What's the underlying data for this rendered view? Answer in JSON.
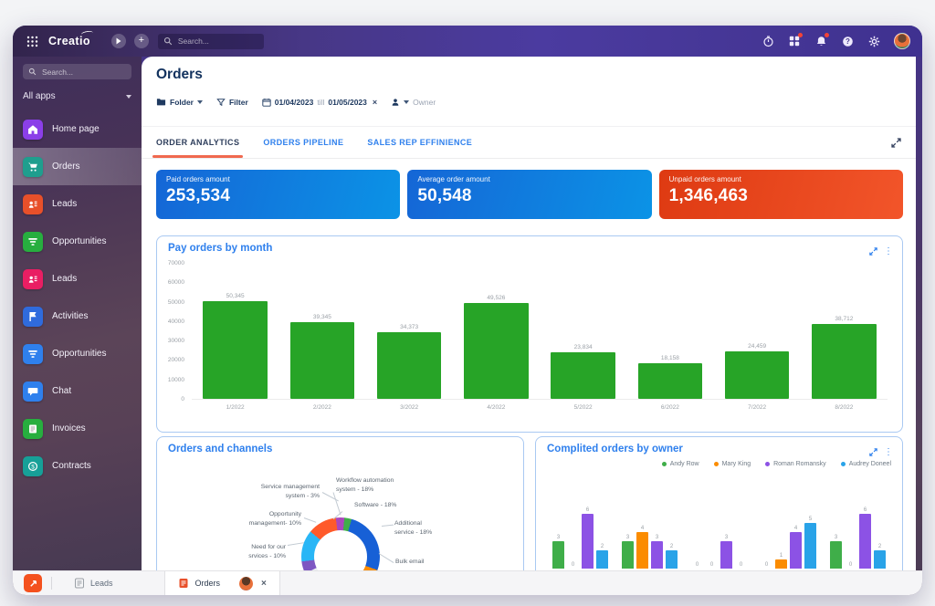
{
  "topbar": {
    "logo": "Creatio",
    "search_placeholder": "Search...",
    "right_icons": [
      "processes-icon",
      "apps-grid-icon",
      "bell-icon",
      "help-icon",
      "gear-icon",
      "user-avatar"
    ],
    "badge_color": "#f44336"
  },
  "sidebar": {
    "search_placeholder": "Search...",
    "apps_label": "All apps",
    "items": [
      {
        "label": "Home page",
        "icon": "home",
        "color": "#8b3fe8",
        "active": false
      },
      {
        "label": "Orders",
        "icon": "cart",
        "color": "#1f9e8e",
        "active": true
      },
      {
        "label": "Leads",
        "icon": "leads",
        "color": "#e8502a",
        "active": false
      },
      {
        "label": "Opportunities",
        "icon": "funnel",
        "color": "#27ae3f",
        "active": false
      },
      {
        "label": "Leads",
        "icon": "leads",
        "color": "#e91e63",
        "active": false
      },
      {
        "label": "Activities",
        "icon": "flag",
        "color": "#2f6bdd",
        "active": false
      },
      {
        "label": "Opportunities",
        "icon": "funnel",
        "color": "#2f80ed",
        "active": false
      },
      {
        "label": "Chat",
        "icon": "chat",
        "color": "#2f80ed",
        "active": false
      },
      {
        "label": "Invoices",
        "icon": "invoice",
        "color": "#27ae3f",
        "active": false
      },
      {
        "label": "Contracts",
        "icon": "contract",
        "color": "#16a098",
        "active": false
      }
    ]
  },
  "header": {
    "title": "Orders",
    "filters": {
      "folder_label": "Folder",
      "filter_label": "Filter",
      "date_from": "01/04/2023",
      "till_label": "till",
      "date_to": "01/05/2023",
      "owner_label": "Owner"
    },
    "tabs": [
      {
        "label": "ORDER ANALYTICS",
        "active": true
      },
      {
        "label": "ORDERS PIPELINE",
        "active": false
      },
      {
        "label": "SALES REP EFFINIENCE",
        "active": false
      }
    ],
    "active_tab_underline_color": "#f0694f"
  },
  "kpis": [
    {
      "label": "Paid orders amount",
      "value": "253,534",
      "gradient": [
        "#1566d6",
        "#0b93e6"
      ]
    },
    {
      "label": "Average order amount",
      "value": "50,548",
      "gradient": [
        "#1566d6",
        "#0b93e6"
      ]
    },
    {
      "label": "Unpaid orders amount",
      "value": "1,346,463",
      "gradient": [
        "#de3a12",
        "#f2552a"
      ]
    }
  ],
  "chart_data": [
    {
      "type": "bar",
      "title": "Pay orders by month",
      "categories": [
        "1/2022",
        "2/2022",
        "3/2022",
        "4/2022",
        "5/2022",
        "6/2022",
        "7/2022",
        "8/2022"
      ],
      "values": [
        50345,
        39345,
        34373,
        49526,
        23834,
        18158,
        24459,
        38712
      ],
      "value_labels": [
        "50,345",
        "39,345",
        "34,373",
        "49,526",
        "23,834",
        "18,158",
        "24,459",
        "38,712"
      ],
      "ylim": [
        0,
        70000
      ],
      "yticks": [
        0,
        10000,
        20000,
        30000,
        40000,
        50000,
        60000,
        70000
      ],
      "bar_color": "#27a427",
      "grid": false
    },
    {
      "type": "pie",
      "title": "Orders and channels",
      "slices": [
        {
          "label": "Service management system",
          "percent": 3,
          "color": "#ab47bc",
          "text_lines": [
            "Service management",
            "system - 3%"
          ]
        },
        {
          "label": "Workflow automation system",
          "percent": 18,
          "color": "#3fae49",
          "text_lines": [
            "Workflow automation",
            "system - 18%"
          ]
        },
        {
          "label": "Software",
          "percent": 18,
          "color": "#1760d6",
          "text_lines": [
            "Software - 18%"
          ]
        },
        {
          "label": "Additional service",
          "percent": 18,
          "color": "#fb8c00",
          "text_lines": [
            "Additional",
            "service - 18%"
          ]
        },
        {
          "label": "Bulk email",
          "color": "#fb8c00",
          "text_lines": [
            "Bulk email"
          ]
        },
        {
          "label": "Opportunity management",
          "percent": 10,
          "color": "#ff5a2a",
          "text_lines": [
            "Opportunity",
            "management- 10%"
          ]
        },
        {
          "label": "Need for our srvices",
          "percent": 10,
          "color": "#29b6f6",
          "text_lines": [
            "Need for our",
            "srvices - 10%"
          ]
        }
      ],
      "ring_start_deg": 245,
      "ring_segments": [
        {
          "color": "#7e57c2",
          "arc": 5
        },
        {
          "color": "#29b6f6",
          "arc": 13
        },
        {
          "color": "#ff5a2a",
          "arc": 12
        },
        {
          "color": "#ab47bc",
          "arc": 3.5
        },
        {
          "color": "#3fae49",
          "arc": 3
        },
        {
          "color": "#1760d6",
          "arc": 26
        },
        {
          "color": "#fb8c00",
          "arc": 15
        }
      ]
    },
    {
      "type": "bar",
      "title": "Complited orders by owner",
      "legend": [
        {
          "name": "Andy Row",
          "color": "#3fae49"
        },
        {
          "name": "Mary King",
          "color": "#fb8c00"
        },
        {
          "name": "Roman Romansky",
          "color": "#8c52e5"
        },
        {
          "name": "Audrey Doneel",
          "color": "#29a3e8"
        }
      ],
      "groups": [
        [
          3,
          0,
          6,
          2
        ],
        [
          3,
          4,
          3,
          2
        ],
        [
          0,
          0,
          3,
          0
        ],
        [
          0,
          1,
          4,
          5
        ],
        [
          3,
          0,
          6,
          2
        ]
      ],
      "ymax": 7,
      "legend_position": "top-right"
    }
  ],
  "taskbar": {
    "tabs": [
      {
        "label": "Leads",
        "active": false
      },
      {
        "label": "Orders",
        "active": true
      }
    ],
    "close_label": "×"
  }
}
